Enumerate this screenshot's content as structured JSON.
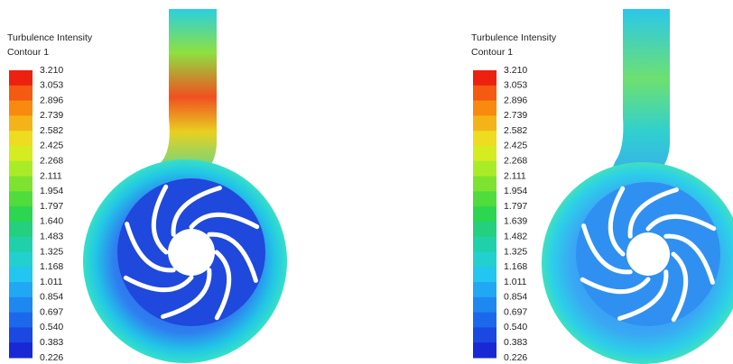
{
  "panels": [
    {
      "legend": {
        "title": "Turbulence Intensity",
        "subtitle": "Contour 1",
        "ticks": [
          "3.210",
          "3.053",
          "2.896",
          "2.739",
          "2.582",
          "2.425",
          "2.268",
          "2.111",
          "1.954",
          "1.797",
          "1.640",
          "1.483",
          "1.325",
          "1.168",
          "1.011",
          "0.854",
          "0.697",
          "0.540",
          "0.383",
          "0.226"
        ]
      }
    },
    {
      "legend": {
        "title": "Turbulence Intensity",
        "subtitle": "Contour 1",
        "ticks": [
          "3.210",
          "3.053",
          "2.896",
          "2.739",
          "2.582",
          "2.425",
          "2.268",
          "2.111",
          "1.954",
          "1.797",
          "1.639",
          "1.482",
          "1.325",
          "1.168",
          "1.011",
          "0.854",
          "0.697",
          "0.540",
          "0.383",
          "0.226"
        ]
      }
    }
  ]
}
